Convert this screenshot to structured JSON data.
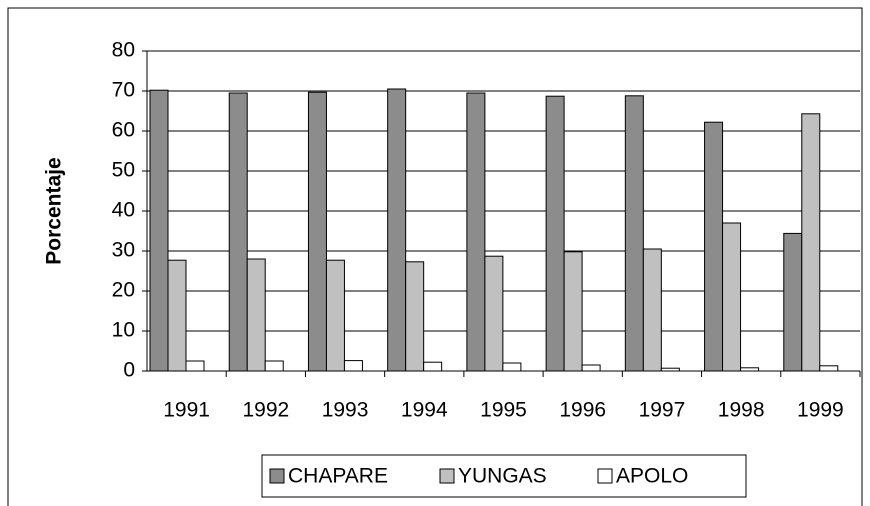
{
  "chart_data": {
    "type": "bar",
    "y_label": "Porcentaje",
    "categories": [
      "1991",
      "1992",
      "1993",
      "1994",
      "1995",
      "1996",
      "1997",
      "1998",
      "1999"
    ],
    "series": [
      {
        "name": "CHAPARE",
        "color": "#8c8c8c",
        "values": [
          70.2,
          69.5,
          69.7,
          70.5,
          69.5,
          68.7,
          68.8,
          62.2,
          34.4
        ]
      },
      {
        "name": "YUNGAS",
        "color": "#c0c0c0",
        "values": [
          27.7,
          28.0,
          27.7,
          27.3,
          28.7,
          29.8,
          30.5,
          37.0,
          64.3
        ]
      },
      {
        "name": "APOLO",
        "color": "#ffffff",
        "values": [
          2.5,
          2.5,
          2.6,
          2.2,
          2.0,
          1.5,
          0.7,
          0.8,
          1.3
        ]
      }
    ],
    "ylim": [
      0,
      80
    ],
    "yticks": [
      0,
      10,
      20,
      30,
      40,
      50,
      60,
      70,
      80
    ],
    "grid": true,
    "legend": "bottom"
  }
}
